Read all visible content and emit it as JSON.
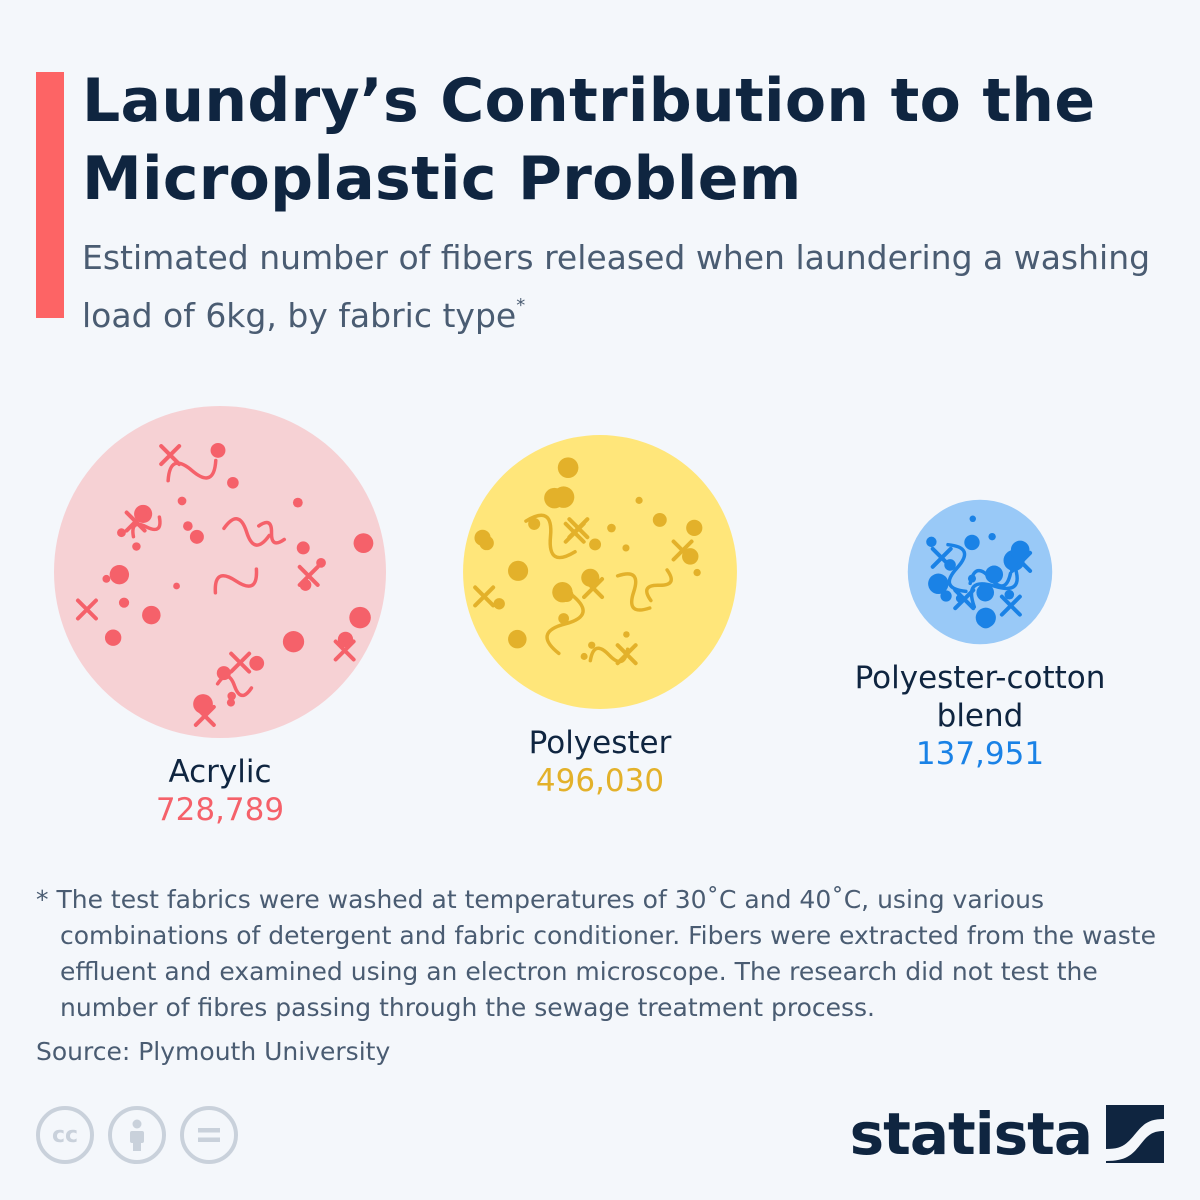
{
  "header": {
    "title": "Laundry’s Contribution to the Microplastic Problem",
    "subtitle": "Estimated number of fibers released when laundering a washing load of 6kg, by fabric type",
    "subtitle_marker": "*"
  },
  "chart_data": {
    "type": "bubble",
    "title": "Laundry’s Contribution to the Microplastic Problem",
    "subtitle": "Estimated number of fibers released when laundering a washing load of 6kg, by fabric type",
    "categories": [
      "Acrylic",
      "Polyester",
      "Polyester-cotton blend"
    ],
    "values": [
      728789,
      496030,
      137951
    ],
    "value_labels": [
      "728,789",
      "496,030",
      "137,951"
    ],
    "label_lines": [
      [
        "Acrylic"
      ],
      [
        "Polyester"
      ],
      [
        "Polyester-cotton",
        "blend"
      ]
    ],
    "colors": {
      "fill": [
        "#f6d1d4",
        "#ffe67a",
        "#99c9f7"
      ],
      "marks": [
        "#f5616a",
        "#e3b12a",
        "#1a82e6"
      ],
      "value_text": [
        "#f5616a",
        "#e3b12a",
        "#1a82e6"
      ]
    }
  },
  "footnote": "* The test fabrics were washed at temperatures of 30˚C and 40˚C, using various combinations of detergent and fabric conditioner. Fibers were extracted from the waste effluent and examined using an electron microscope. The research did not test the number of fibres passing through the sewage treatment process.",
  "source": "Source: Plymouth University",
  "footer": {
    "license_icons": [
      "cc-icon",
      "attribution-icon",
      "no-derivatives-icon"
    ],
    "logo": "statista"
  }
}
